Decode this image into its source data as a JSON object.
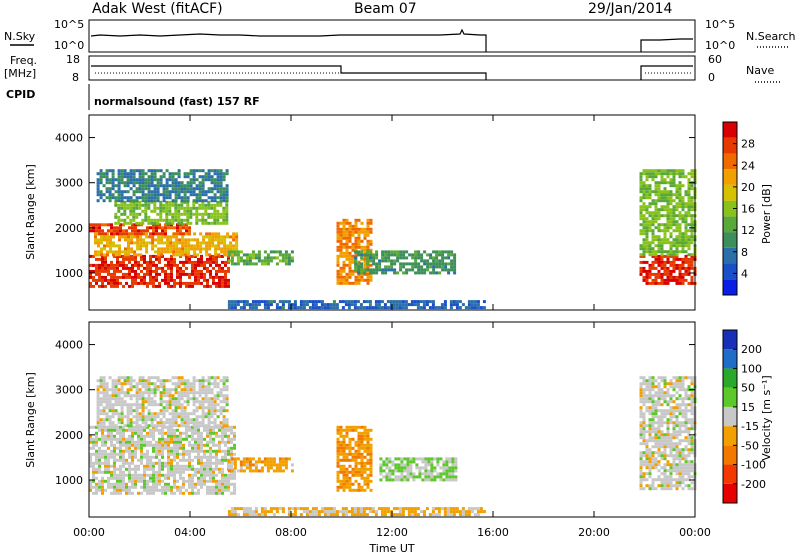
{
  "header": {
    "station": "Adak West (fitACF)",
    "beam": "Beam 07",
    "date": "29/Jan/2014"
  },
  "strips": {
    "nsky": {
      "label": "N.Sky",
      "ticks": [
        "10^5",
        "10^0"
      ],
      "right_label": "N.Search",
      "right_ticks": [
        "10^5",
        "10^0"
      ]
    },
    "freq": {
      "label_line1": "Freq.",
      "label_line2": "[MHz]",
      "ticks": [
        "18",
        "8"
      ],
      "right_label": "Nave",
      "right_ticks": [
        "60",
        "0"
      ]
    },
    "cpid": {
      "label": "CPID",
      "text": "normalsound (fast) 157 RF"
    }
  },
  "colors": {
    "power": [
      "#0b1ee6",
      "#1a4fc8",
      "#2a6fa8",
      "#3c8f5a",
      "#58a83a",
      "#8ac21c",
      "#d6c000",
      "#f0a000",
      "#f06a00",
      "#e63a00",
      "#d80000"
    ],
    "velocity": [
      "#e60000",
      "#f23a00",
      "#f27800",
      "#f2a000",
      "#c8c8c8",
      "#5cc82a",
      "#2aa82a",
      "#1e6ec8",
      "#1830b8"
    ]
  },
  "chart_data": [
    {
      "type": "heatmap",
      "panel": "power",
      "ylabel": "Slant Range [km]",
      "yticks": [
        "1000",
        "2000",
        "3000",
        "4000"
      ],
      "ylim": [
        180,
        4500
      ],
      "xlim": [
        0,
        24
      ],
      "colorbar": {
        "label": "Power [dB]",
        "ticks": [
          "4",
          "8",
          "12",
          "16",
          "20",
          "24",
          "28"
        ],
        "range": [
          0,
          30
        ]
      },
      "regions": [
        {
          "t0": 0.0,
          "t1": 5.5,
          "r0": 700,
          "r1": 1400,
          "value": 27
        },
        {
          "t0": 0.2,
          "t1": 5.8,
          "r0": 1400,
          "r1": 1900,
          "value": 20
        },
        {
          "t0": 0.0,
          "t1": 4.0,
          "r0": 1900,
          "r1": 2100,
          "value": 26
        },
        {
          "t0": 1.0,
          "t1": 5.5,
          "r0": 2100,
          "r1": 2600,
          "value": 14
        },
        {
          "t0": 0.3,
          "t1": 5.5,
          "r0": 2600,
          "r1": 3300,
          "value": 8
        },
        {
          "t0": 5.5,
          "t1": 8.0,
          "r0": 1200,
          "r1": 1500,
          "value": 12
        },
        {
          "t0": 9.8,
          "t1": 11.2,
          "r0": 800,
          "r1": 2200,
          "value": 22
        },
        {
          "t0": 10.5,
          "t1": 14.5,
          "r0": 1000,
          "r1": 1500,
          "value": 10
        },
        {
          "t0": 5.5,
          "t1": 15.7,
          "r0": 250,
          "r1": 400,
          "value": 6
        },
        {
          "t0": 21.8,
          "t1": 24.0,
          "r0": 800,
          "r1": 1400,
          "value": 27
        },
        {
          "t0": 21.8,
          "t1": 24.0,
          "r0": 1400,
          "r1": 3300,
          "value": 14
        }
      ]
    },
    {
      "type": "heatmap",
      "panel": "velocity",
      "ylabel": "Slant Range [km]",
      "xlabel": "Time UT",
      "yticks": [
        "1000",
        "2000",
        "3000",
        "4000"
      ],
      "xticks": [
        "00:00",
        "04:00",
        "08:00",
        "12:00",
        "16:00",
        "20:00",
        "00:00"
      ],
      "ylim": [
        180,
        4500
      ],
      "xlim": [
        0,
        24
      ],
      "colorbar": {
        "label": "Velocity [m s⁻¹]",
        "ticks": [
          "-200",
          "-100",
          "-50",
          "-15",
          "15",
          "50",
          "100",
          "200"
        ],
        "range": [
          -250,
          250
        ]
      },
      "regions": [
        {
          "t0": 0.0,
          "t1": 5.8,
          "r0": 700,
          "r1": 2200,
          "value": 0
        },
        {
          "t0": 0.3,
          "t1": 5.5,
          "r0": 2200,
          "r1": 3300,
          "value": 0
        },
        {
          "t0": 5.5,
          "t1": 8.0,
          "r0": 1200,
          "r1": 1500,
          "value": -60
        },
        {
          "t0": 9.8,
          "t1": 11.2,
          "r0": 800,
          "r1": 2200,
          "value": -70
        },
        {
          "t0": 11.5,
          "t1": 14.5,
          "r0": 1000,
          "r1": 1500,
          "value": 30
        },
        {
          "t0": 5.5,
          "t1": 15.7,
          "r0": 250,
          "r1": 400,
          "value": -40
        },
        {
          "t0": 21.8,
          "t1": 24.0,
          "r0": 800,
          "r1": 3300,
          "value": 0
        }
      ]
    }
  ]
}
